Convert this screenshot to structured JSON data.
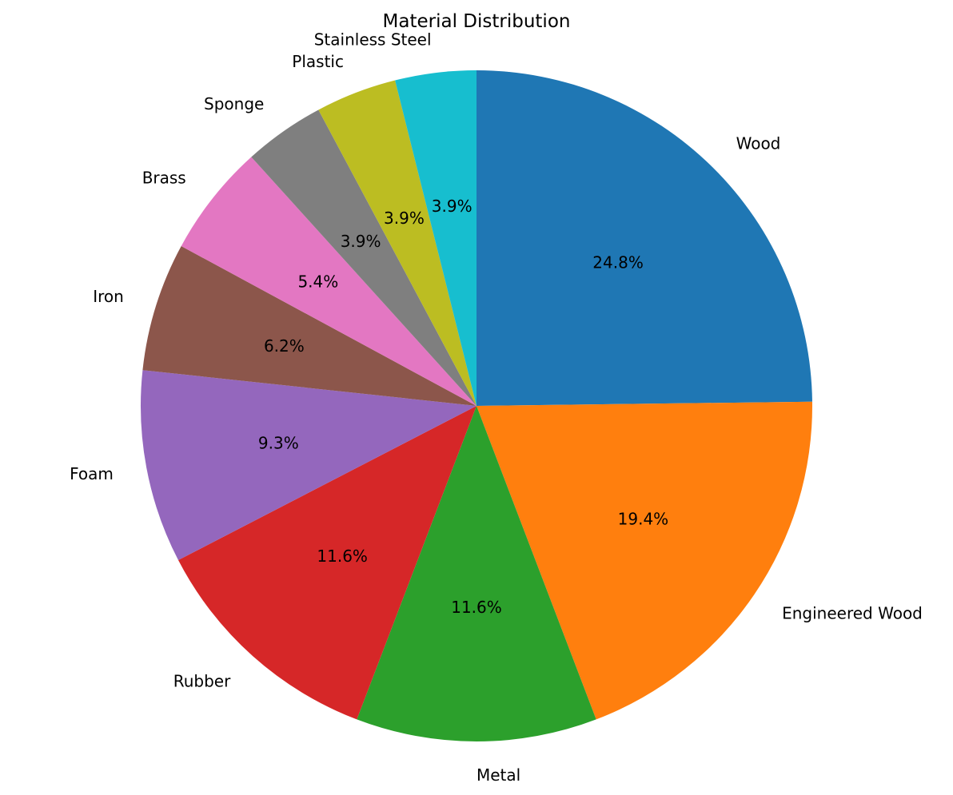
{
  "chart_data": {
    "type": "pie",
    "title": "Material Distribution",
    "start_angle_deg": 90,
    "direction": "clockwise",
    "slices": [
      {
        "label": "Wood",
        "value": 24.8,
        "pct_label": "24.8%",
        "color": "#1f77b4"
      },
      {
        "label": "Engineered Wood",
        "value": 19.4,
        "pct_label": "19.4%",
        "color": "#ff7f0e"
      },
      {
        "label": "Metal",
        "value": 11.6,
        "pct_label": "11.6%",
        "color": "#2ca02c"
      },
      {
        "label": "Rubber",
        "value": 11.6,
        "pct_label": "11.6%",
        "color": "#d62728"
      },
      {
        "label": "Foam",
        "value": 9.3,
        "pct_label": "9.3%",
        "color": "#9467bd"
      },
      {
        "label": "Iron",
        "value": 6.2,
        "pct_label": "6.2%",
        "color": "#8c564b"
      },
      {
        "label": "Brass",
        "value": 5.4,
        "pct_label": "5.4%",
        "color": "#e377c2"
      },
      {
        "label": "Sponge",
        "value": 3.9,
        "pct_label": "3.9%",
        "color": "#7f7f7f"
      },
      {
        "label": "Plastic",
        "value": 3.9,
        "pct_label": "3.9%",
        "color": "#bcbd22"
      },
      {
        "label": "Stainless Steel",
        "value": 3.9,
        "pct_label": "3.9%",
        "color": "#17becf"
      }
    ]
  }
}
